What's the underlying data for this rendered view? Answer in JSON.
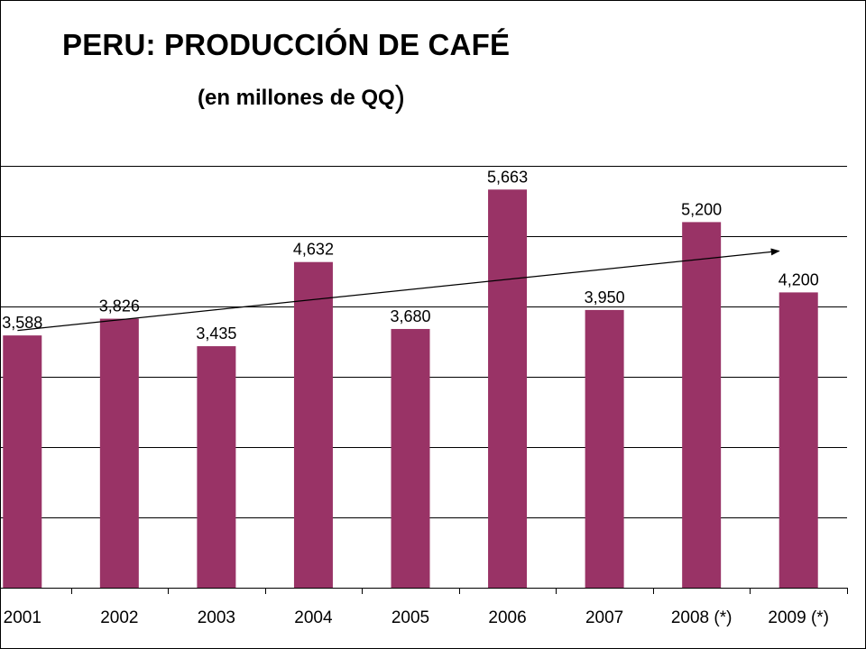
{
  "chart_data": {
    "type": "bar",
    "title": "PERU: PRODUCCIÓN DE CAFÉ",
    "subtitle_text": "(en millones de QQ",
    "subtitle_close": ")",
    "categories": [
      "2001",
      "2002",
      "2003",
      "2004",
      "2005",
      "2006",
      "2007",
      "2008 (*)",
      "2009 (*)"
    ],
    "values": [
      3588,
      3826,
      3435,
      4632,
      3680,
      5663,
      3950,
      5200,
      4200
    ],
    "data_labels": [
      "3,588",
      "3,826",
      "3,435",
      "4,632",
      "3,680",
      "5,663",
      "3,950",
      "5,200",
      "4,200"
    ],
    "ylim": [
      0,
      6000
    ],
    "grid": true,
    "trendline": true,
    "colors": {
      "bar": "#993366",
      "grid": "#000000",
      "trend": "#000000"
    }
  }
}
